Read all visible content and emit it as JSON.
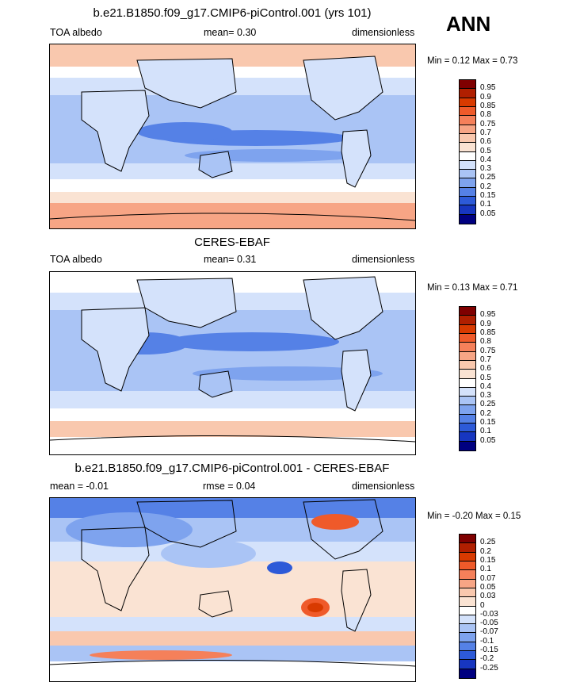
{
  "season": "ANN",
  "panels": [
    {
      "title": "b.e21.B1850.f09_g17.CMIP6-piControl.001 (yrs 101)",
      "left_label": "TOA albedo",
      "center_label": "mean=   0.30",
      "right_label": "dimensionless",
      "minmax": "Min =   0.12 Max =   0.73",
      "colorbar": {
        "labels": [
          "0.95",
          "0.9",
          "0.85",
          "0.8",
          "0.75",
          "0.7",
          "0.6",
          "0.5",
          "0.4",
          "0.3",
          "0.25",
          "0.2",
          "0.15",
          "0.1",
          "0.05"
        ],
        "colors": [
          "#7f0000",
          "#b01f00",
          "#d83a00",
          "#ef5a2a",
          "#f5805a",
          "#f7a585",
          "#f9c8ae",
          "#fae3d3",
          "#ffffff",
          "#d4e2fb",
          "#aac4f5",
          "#7ea3ee",
          "#5581e6",
          "#2d5ad8",
          "#1736c0",
          "#000080"
        ]
      }
    },
    {
      "title": "CERES-EBAF",
      "left_label": "TOA albedo",
      "center_label": "mean=   0.31",
      "right_label": "dimensionless",
      "minmax": "Min =   0.13 Max =   0.71",
      "colorbar": {
        "labels": [
          "0.95",
          "0.9",
          "0.85",
          "0.8",
          "0.75",
          "0.7",
          "0.6",
          "0.5",
          "0.4",
          "0.3",
          "0.25",
          "0.2",
          "0.15",
          "0.1",
          "0.05"
        ],
        "colors": [
          "#7f0000",
          "#b01f00",
          "#d83a00",
          "#ef5a2a",
          "#f5805a",
          "#f7a585",
          "#f9c8ae",
          "#fae3d3",
          "#ffffff",
          "#d4e2fb",
          "#aac4f5",
          "#7ea3ee",
          "#5581e6",
          "#2d5ad8",
          "#1736c0",
          "#000080"
        ]
      }
    },
    {
      "title": "b.e21.B1850.f09_g17.CMIP6-piControl.001 - CERES-EBAF",
      "left_label": "mean =  -0.01",
      "center_label": "rmse =   0.04",
      "right_label": "dimensionless",
      "minmax": "Min =  -0.20 Max =   0.15",
      "colorbar": {
        "labels": [
          "0.25",
          "0.2",
          "0.15",
          "0.1",
          "0.07",
          "0.05",
          "0.03",
          "0",
          "-0.03",
          "-0.05",
          "-0.07",
          "-0.1",
          "-0.15",
          "-0.2",
          "-0.25"
        ],
        "colors": [
          "#7f0000",
          "#b01f00",
          "#d83a00",
          "#ef5a2a",
          "#f5805a",
          "#f7a585",
          "#f9c8ae",
          "#fae3d3",
          "#ffffff",
          "#d4e2fb",
          "#aac4f5",
          "#7ea3ee",
          "#5581e6",
          "#2d5ad8",
          "#1736c0",
          "#000080"
        ]
      }
    }
  ]
}
